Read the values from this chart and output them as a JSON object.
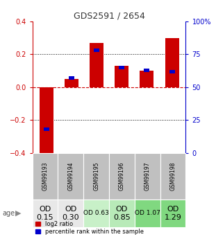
{
  "title": "GDS2591 / 2654",
  "samples": [
    "GSM99193",
    "GSM99194",
    "GSM99195",
    "GSM99196",
    "GSM99197",
    "GSM99198"
  ],
  "log2_ratio": [
    -0.42,
    0.05,
    0.27,
    0.13,
    0.1,
    0.3
  ],
  "percentile_rank": [
    18,
    57,
    78,
    65,
    63,
    62
  ],
  "age_labels": [
    "OD\n0.15",
    "OD\n0.30",
    "OD 0.63",
    "OD\n0.85",
    "OD 1.07",
    "OD\n1.29"
  ],
  "age_bg_colors": [
    "#e8e8e8",
    "#e8e8e8",
    "#c8f0c8",
    "#b8eab8",
    "#80d880",
    "#80d880"
  ],
  "age_fontsize": [
    8,
    8,
    6.5,
    8,
    6.5,
    8
  ],
  "ylim": [
    -0.4,
    0.4
  ],
  "y2lim": [
    0,
    100
  ],
  "bar_color": "#cc0000",
  "dot_color": "#0000cc",
  "title_color": "#333333",
  "left_axis_color": "#cc0000",
  "right_axis_color": "#0000cc",
  "grid_color": "#333333",
  "zero_line_color": "#cc0000",
  "sample_bg_color": "#c0c0c0",
  "legend_log2": "log2 ratio",
  "legend_pct": "percentile rank within the sample"
}
